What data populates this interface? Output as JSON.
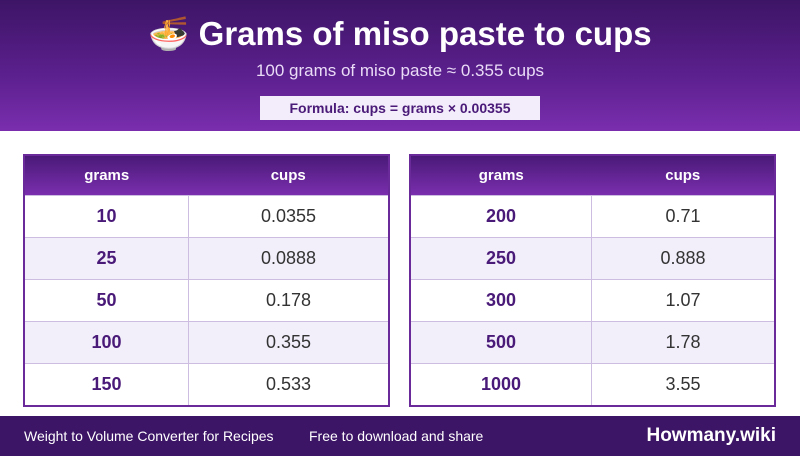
{
  "header": {
    "title": "🍜 Grams of miso paste to cups",
    "subtitle": "100 grams of miso paste ≈ 0.355 cups",
    "formula": "Formula: cups = grams × 0.00355"
  },
  "tables": [
    {
      "headers": [
        "grams",
        "cups"
      ],
      "rows": [
        [
          "10",
          "0.0355"
        ],
        [
          "25",
          "0.0888"
        ],
        [
          "50",
          "0.178"
        ],
        [
          "100",
          "0.355"
        ],
        [
          "150",
          "0.533"
        ]
      ]
    },
    {
      "headers": [
        "grams",
        "cups"
      ],
      "rows": [
        [
          "200",
          "0.71"
        ],
        [
          "250",
          "0.888"
        ],
        [
          "300",
          "1.07"
        ],
        [
          "500",
          "1.78"
        ],
        [
          "1000",
          "3.55"
        ]
      ]
    }
  ],
  "footer": {
    "left": "Weight to Volume Converter for Recipes",
    "middle": "Free to download and share",
    "brand": "Howmany.wiki"
  }
}
